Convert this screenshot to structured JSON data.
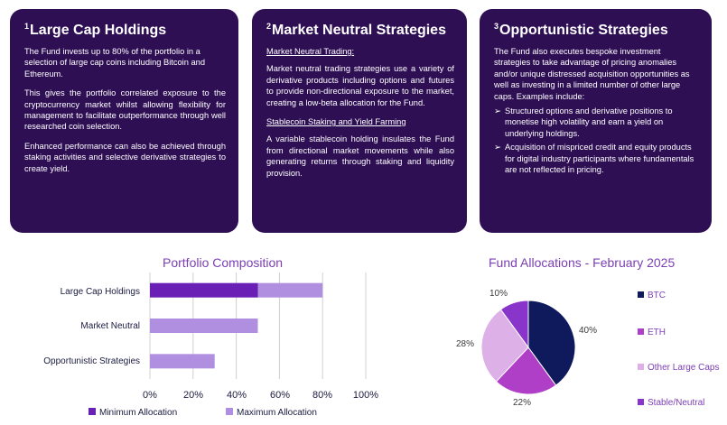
{
  "cards": [
    {
      "num": "1",
      "title": "Large Cap Holdings",
      "paragraphs": [
        "The Fund invests up to 80% of the portfolio in a selection of large cap coins including Bitcoin and Ethereum.",
        "This gives the portfolio correlated exposure to the cryptocurrency market whilst allowing flexibility for management to facilitate outperformance through well researched coin selection.",
        "Enhanced performance can also be achieved through staking activities and selective derivative strategies to create yield."
      ]
    },
    {
      "num": "2",
      "title": "Market Neutral Strategies",
      "sub1": "Market Neutral Trading:",
      "para1": "Market neutral trading strategies use a variety of derivative products including options and futures to provide non-directional exposure to the market, creating a low-beta allocation for the Fund.",
      "sub2": "Stablecoin Staking and Yield Farming",
      "para2": "A variable stablecoin holding insulates the Fund from directional market movements while also generating returns through staking and liquidity provision."
    },
    {
      "num": "3",
      "title": "Opportunistic Strategies",
      "para1": "The Fund also executes bespoke investment strategies to take advantage of pricing anomalies and/or unique distressed acquisition opportunities as well as investing in a limited number of other large caps. Examples include:",
      "bullet_glyph": "➢",
      "bullets": [
        "Structured options and derivative positions to monetise high volatility and earn a yield on underlying holdings.",
        "Acquisition of mispriced credit and equity products for digital industry participants where fundamentals are not reflected in pricing."
      ]
    }
  ],
  "chart_data": [
    {
      "type": "bar",
      "orientation": "horizontal",
      "stacked": true,
      "title": "Portfolio Composition",
      "categories": [
        "Large Cap Holdings",
        "Market Neutral",
        "Opportunistic Strategies"
      ],
      "series": [
        {
          "name": "Minimum Allocation",
          "values": [
            50,
            0,
            0
          ],
          "color": "#6a1fb5"
        },
        {
          "name": "Maximum Allocation",
          "values": [
            30,
            50,
            30
          ],
          "color": "#b08ee0"
        }
      ],
      "xlim": [
        0,
        100
      ],
      "xticks": [
        "0%",
        "20%",
        "40%",
        "60%",
        "80%",
        "100%"
      ],
      "grid": true,
      "legend_position": "bottom"
    },
    {
      "type": "pie",
      "title": "Fund Allocations - February 2025",
      "labels": [
        "BTC",
        "ETH",
        "Other Large Caps",
        "Stable/Neutral"
      ],
      "values": [
        40,
        22,
        28,
        10
      ],
      "value_labels": [
        "40%",
        "22%",
        "28%",
        "10%"
      ],
      "colors": [
        "#0e1a5c",
        "#b03fc8",
        "#ddb0e8",
        "#8a35c9"
      ],
      "legend_position": "right"
    }
  ]
}
